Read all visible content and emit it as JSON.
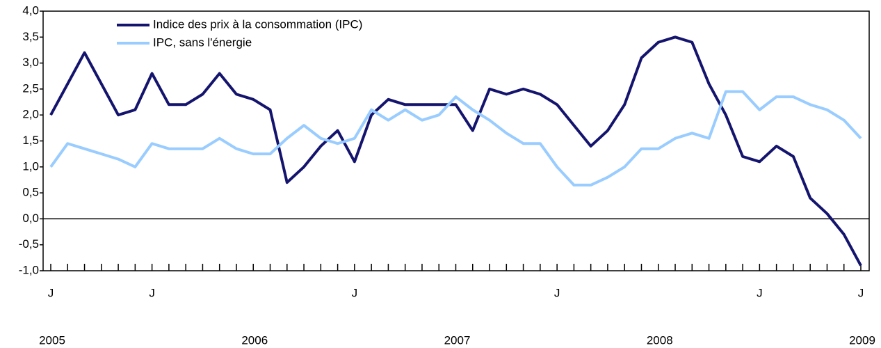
{
  "chart_data": {
    "type": "line",
    "categories": [
      "J",
      null,
      null,
      null,
      null,
      null,
      "J",
      null,
      null,
      null,
      null,
      null,
      null,
      null,
      null,
      null,
      null,
      null,
      "J",
      null,
      null,
      null,
      null,
      null,
      null,
      null,
      null,
      null,
      null,
      null,
      "J",
      null,
      null,
      null,
      null,
      null,
      null,
      null,
      null,
      null,
      null,
      null,
      "J",
      null,
      null,
      null,
      null,
      null,
      "J"
    ],
    "years": [
      "2005",
      null,
      null,
      null,
      null,
      null,
      null,
      null,
      null,
      null,
      null,
      null,
      "2006",
      null,
      null,
      null,
      null,
      null,
      null,
      null,
      null,
      null,
      null,
      null,
      "2007",
      null,
      null,
      null,
      null,
      null,
      null,
      null,
      null,
      null,
      null,
      null,
      "2008",
      null,
      null,
      null,
      null,
      null,
      null,
      null,
      null,
      null,
      null,
      null,
      "2009"
    ],
    "series": [
      {
        "name": "Indice des prix à la consommation (IPC)",
        "color": "#14146e",
        "values": [
          2.0,
          2.6,
          3.2,
          2.6,
          2.0,
          2.1,
          2.8,
          2.2,
          2.2,
          2.4,
          2.8,
          2.4,
          2.3,
          2.1,
          0.7,
          1.0,
          1.4,
          1.7,
          1.1,
          2.0,
          2.3,
          2.2,
          2.2,
          2.2,
          2.2,
          1.7,
          2.5,
          2.4,
          2.5,
          2.4,
          2.2,
          1.8,
          1.4,
          1.7,
          2.2,
          3.1,
          3.4,
          3.5,
          3.4,
          2.6,
          2.0,
          1.2,
          1.1,
          1.4,
          1.2,
          0.4,
          0.1,
          -0.3,
          -0.9
        ]
      },
      {
        "name": "IPC, sans l'énergie",
        "color": "#99ccff",
        "values": [
          1.0,
          1.45,
          1.35,
          1.25,
          1.15,
          1.0,
          1.45,
          1.35,
          1.35,
          1.35,
          1.55,
          1.35,
          1.25,
          1.25,
          1.55,
          1.8,
          1.55,
          1.45,
          1.55,
          2.1,
          1.9,
          2.1,
          1.9,
          2.0,
          2.35,
          2.1,
          1.9,
          1.65,
          1.45,
          1.45,
          1.0,
          0.65,
          0.65,
          0.8,
          1.0,
          1.35,
          1.35,
          1.55,
          1.65,
          1.55,
          2.45,
          2.45,
          2.1,
          2.35,
          2.35,
          2.2,
          2.1,
          1.9,
          1.55
        ]
      }
    ],
    "ylim": [
      -1,
      4
    ],
    "yticks": [
      {
        "value": -1,
        "label": "-1,0"
      },
      {
        "value": -0.5,
        "label": "-0,5"
      },
      {
        "value": 0,
        "label": "0,0"
      },
      {
        "value": 0.5,
        "label": "0,5"
      },
      {
        "value": 1,
        "label": "1,0"
      },
      {
        "value": 1.5,
        "label": "1,5"
      },
      {
        "value": 2,
        "label": "2,0"
      },
      {
        "value": 2.5,
        "label": "2,5"
      },
      {
        "value": 3,
        "label": "3,0"
      },
      {
        "value": 3.5,
        "label": "3,5"
      },
      {
        "value": 4,
        "label": "4,0"
      }
    ],
    "zero_line": true,
    "grid": false,
    "legend": "top-left"
  }
}
